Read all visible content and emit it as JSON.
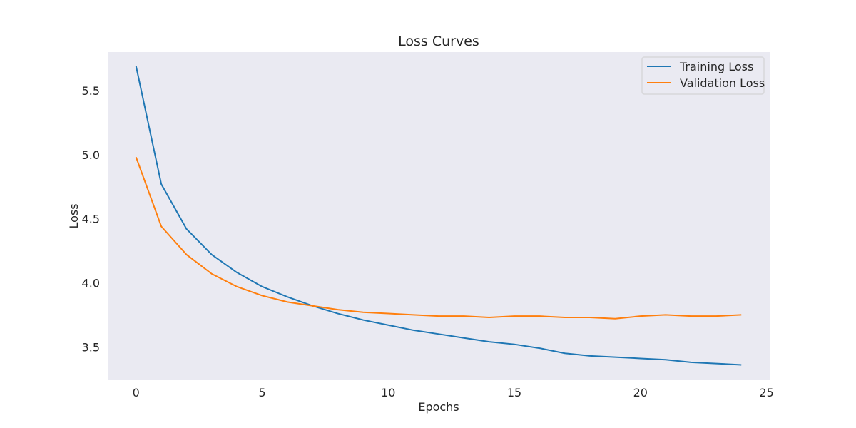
{
  "chart_data": {
    "type": "line",
    "title": "Loss Curves",
    "xlabel": "Epochs",
    "ylabel": "Loss",
    "xlim": [
      -1.125,
      25.125
    ],
    "ylim": [
      3.24,
      5.8
    ],
    "xticks": [
      0,
      5,
      10,
      15,
      20,
      25
    ],
    "yticks": [
      3.5,
      4.0,
      4.5,
      5.0,
      5.5
    ],
    "grid": false,
    "legend_position": "top-right",
    "background_color": "#eaeaf2",
    "x": [
      0,
      1,
      2,
      3,
      4,
      5,
      6,
      7,
      8,
      9,
      10,
      11,
      12,
      13,
      14,
      15,
      16,
      17,
      18,
      19,
      20,
      21,
      22,
      23,
      24
    ],
    "series": [
      {
        "name": "Training Loss",
        "color": "#1f77b4",
        "values": [
          5.69,
          4.77,
          4.42,
          4.22,
          4.08,
          3.97,
          3.89,
          3.82,
          3.76,
          3.71,
          3.67,
          3.63,
          3.6,
          3.57,
          3.54,
          3.52,
          3.49,
          3.45,
          3.43,
          3.42,
          3.41,
          3.4,
          3.38,
          3.37,
          3.36
        ]
      },
      {
        "name": "Validation Loss",
        "color": "#ff7f0e",
        "values": [
          4.98,
          4.44,
          4.22,
          4.07,
          3.97,
          3.9,
          3.85,
          3.82,
          3.79,
          3.77,
          3.76,
          3.75,
          3.74,
          3.74,
          3.73,
          3.74,
          3.74,
          3.73,
          3.73,
          3.72,
          3.74,
          3.75,
          3.74,
          3.74,
          3.75
        ]
      }
    ]
  }
}
